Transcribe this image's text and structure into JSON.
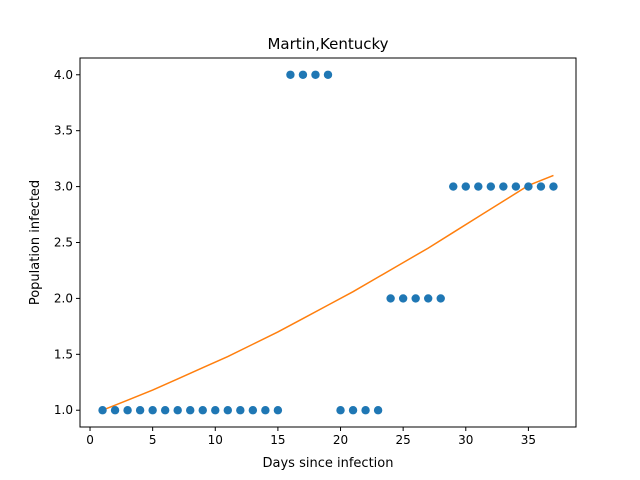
{
  "chart_data": {
    "type": "scatter",
    "title": "Martin,Kentucky",
    "xlabel": "Days since infection",
    "ylabel": "Population infected",
    "xlim": [
      -0.8,
      38.8
    ],
    "ylim": [
      0.85,
      4.15
    ],
    "xticks": [
      0,
      5,
      10,
      15,
      20,
      25,
      30,
      35
    ],
    "yticks": [
      1.0,
      1.5,
      2.0,
      2.5,
      3.0,
      3.5,
      4.0
    ],
    "grid": false,
    "series": [
      {
        "kind": "scatter",
        "color": "#1f77b4",
        "x": [
          1,
          2,
          3,
          4,
          5,
          6,
          7,
          8,
          9,
          10,
          11,
          12,
          13,
          14,
          15,
          16,
          17,
          18,
          19,
          20,
          21,
          22,
          23,
          24,
          25,
          26,
          27,
          28,
          29,
          30,
          31,
          32,
          33,
          34,
          35,
          36,
          37
        ],
        "y": [
          1,
          1,
          1,
          1,
          1,
          1,
          1,
          1,
          1,
          1,
          1,
          1,
          1,
          1,
          1,
          4,
          4,
          4,
          4,
          1,
          1,
          1,
          1,
          2,
          2,
          2,
          2,
          2,
          3,
          3,
          3,
          3,
          3,
          3,
          3,
          3,
          3
        ]
      },
      {
        "kind": "line",
        "color": "#ff7f0e",
        "x": [
          1,
          3,
          5,
          7,
          9,
          11,
          13,
          15,
          17,
          19,
          21,
          23,
          25,
          27,
          29,
          31,
          33,
          35,
          37
        ],
        "y": [
          1.0,
          1.09,
          1.18,
          1.28,
          1.38,
          1.48,
          1.59,
          1.7,
          1.82,
          1.94,
          2.06,
          2.19,
          2.32,
          2.45,
          2.59,
          2.73,
          2.87,
          3.01,
          3.1
        ]
      }
    ]
  }
}
